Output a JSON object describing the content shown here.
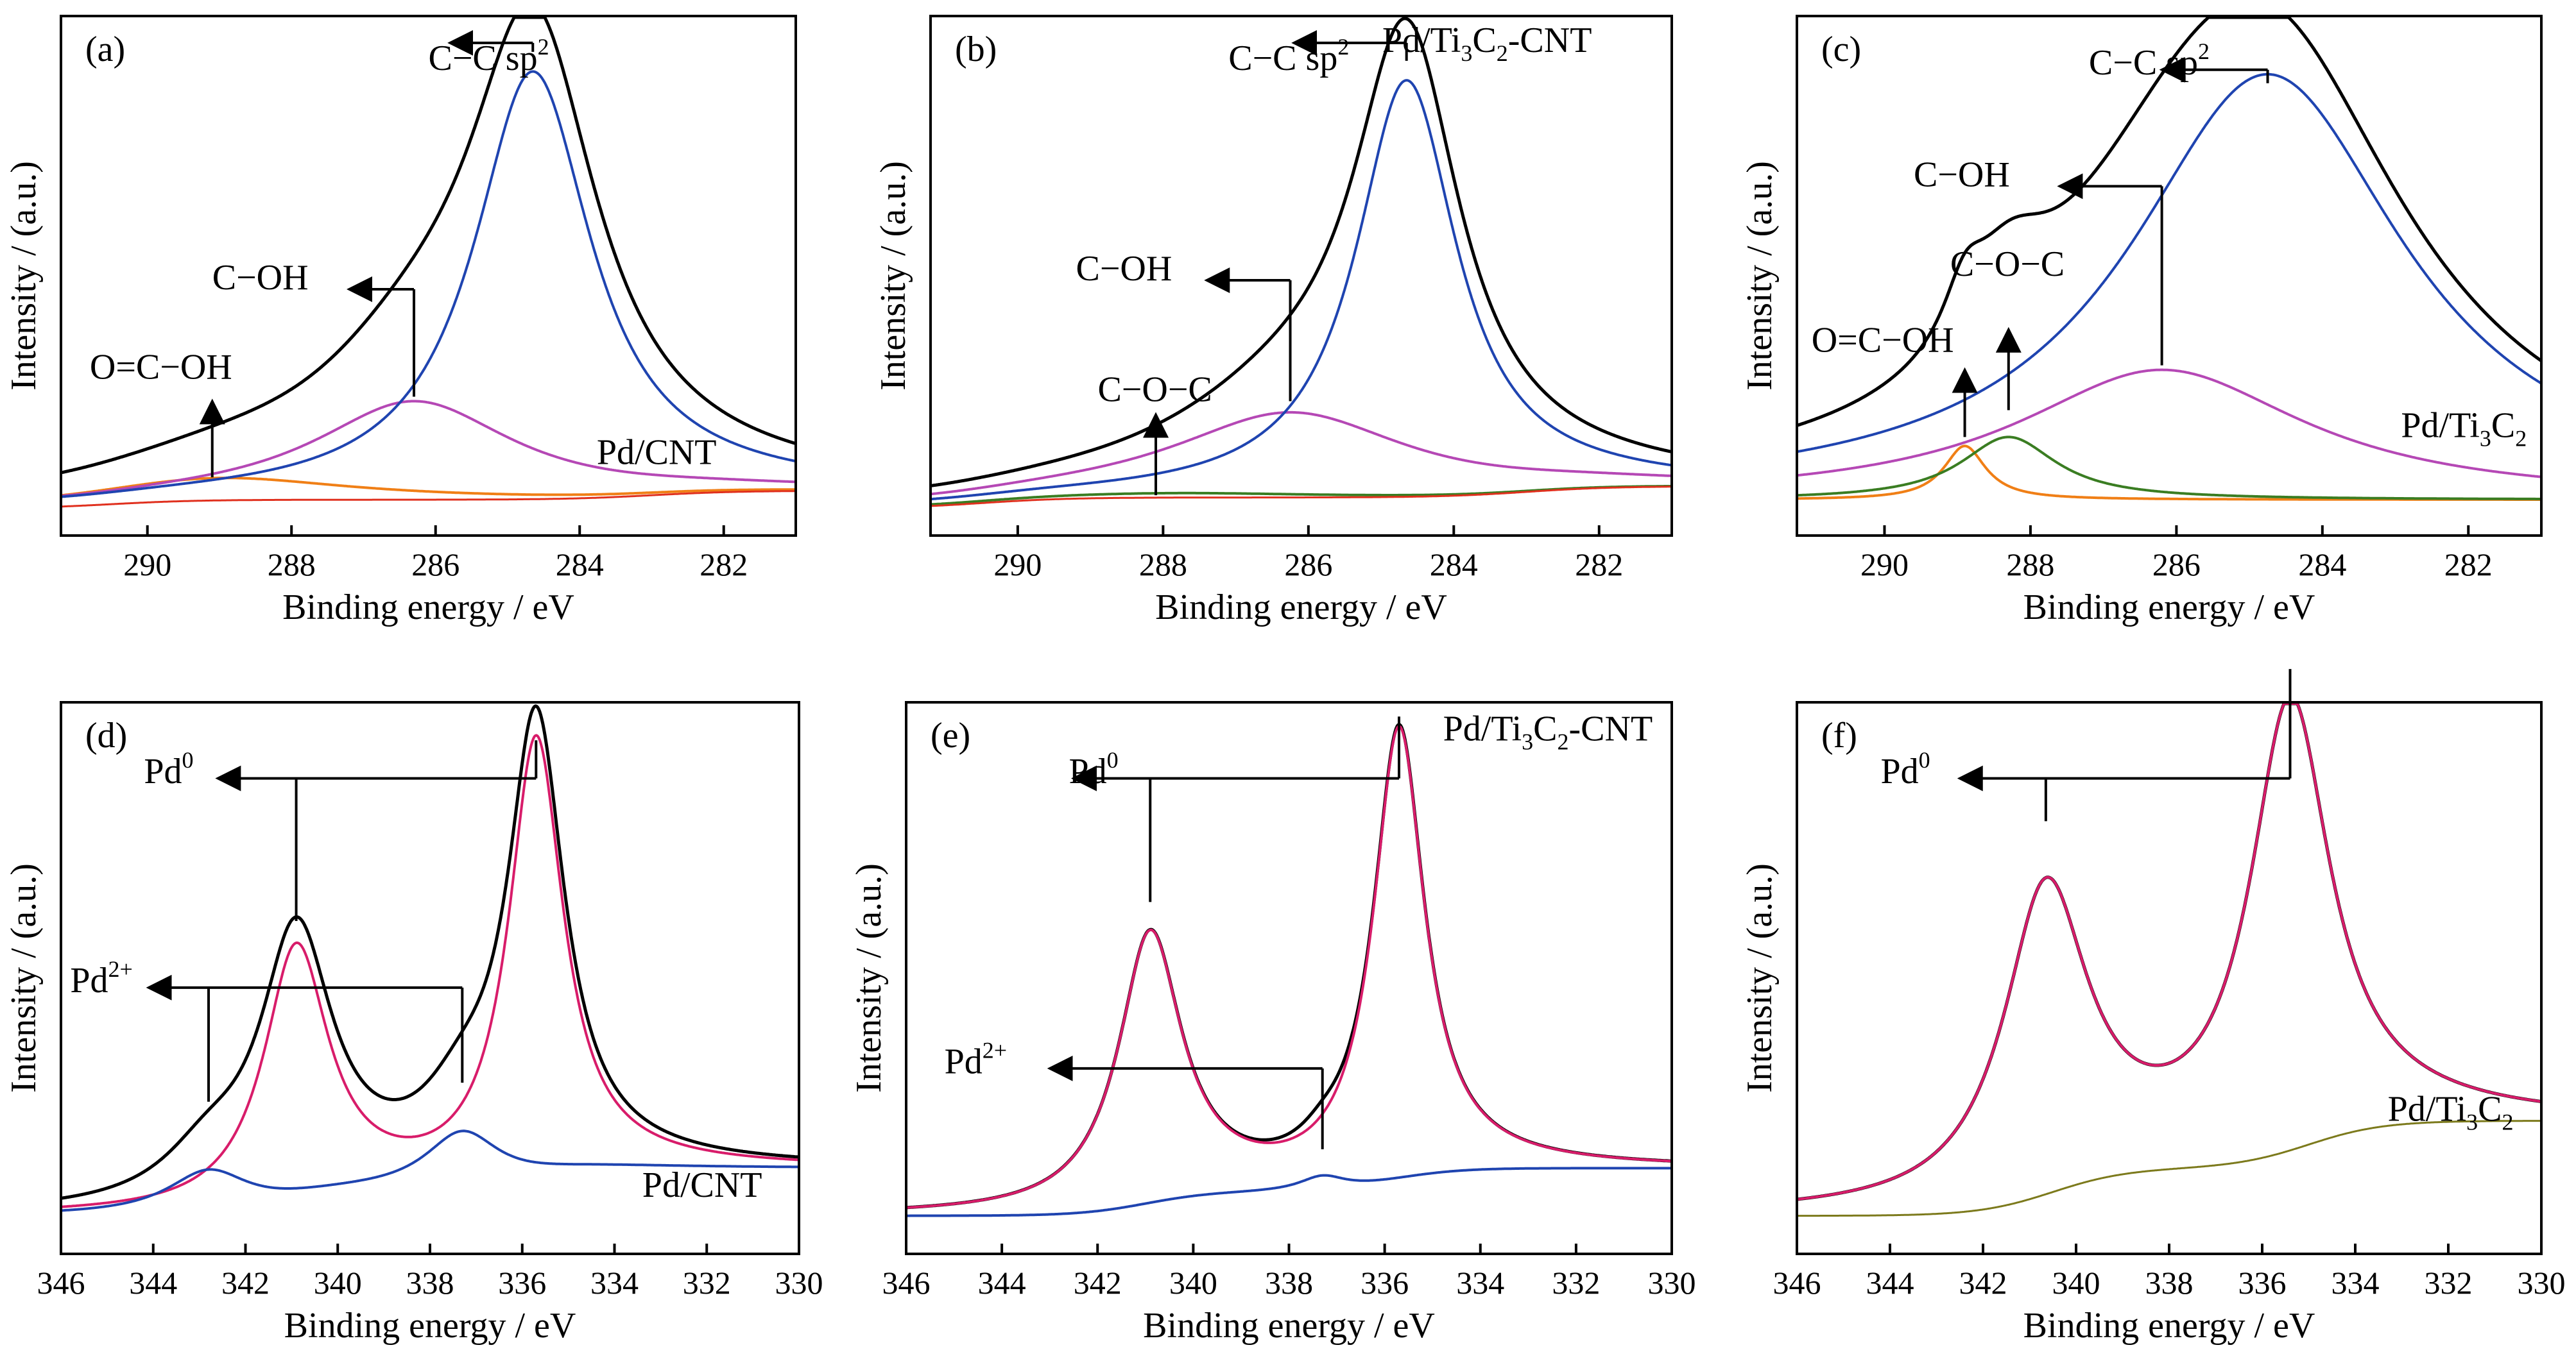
{
  "chart_data": [
    {
      "panel": "(a)",
      "type": "line",
      "sample": "Pd/CNT",
      "xlabel": "Binding energy / eV",
      "ylabel": "Intensity / (a.u.)",
      "xlim": [
        291.2,
        281
      ],
      "ylim": [
        -0.08,
        1.08
      ],
      "reversed_x": true,
      "grid": false,
      "xticks": [
        290,
        288,
        286,
        284,
        282
      ],
      "series": [
        {
          "color": "#000000",
          "width": 5,
          "baseline": {
            "a": -0.02,
            "b": 0.04,
            "t1": 290.5,
            "t2": 283.0
          },
          "peaks": [
            {
              "c": 289.0,
              "a": 0.05,
              "w": 2.2
            },
            {
              "c": 286.3,
              "a": 0.22,
              "w": 1.7
            },
            {
              "c": 284.65,
              "a": 0.985,
              "w": 1.1
            }
          ]
        },
        {
          "color": "#f07f16",
          "width": 4,
          "baseline": {
            "a": -0.02,
            "b": 0.04,
            "t1": 290.5,
            "t2": 283.0
          },
          "peaks": [
            {
              "c": 289.0,
              "a": 0.05,
              "w": 2.2
            }
          ]
        },
        {
          "color": "#b548b5",
          "width": 4,
          "baseline": {
            "a": -0.02,
            "b": 0.04,
            "t1": 290.5,
            "t2": 283.0
          },
          "peaks": [
            {
              "c": 286.3,
              "a": 0.22,
              "w": 1.7
            }
          ]
        },
        {
          "color": "#1f44b0",
          "width": 4,
          "baseline": {
            "a": -0.02,
            "b": 0.04,
            "t1": 290.5,
            "t2": 283.0
          },
          "peaks": [
            {
              "c": 284.65,
              "a": 0.955,
              "w": 1.0
            }
          ]
        },
        {
          "color": "#e0301e",
          "width": 3,
          "baseline": {
            "a": -0.02,
            "b": 0.04,
            "t1": 290.5,
            "t2": 283.0
          },
          "peaks": []
        }
      ],
      "labels": [
        {
          "text": "C−C sp",
          "sup": "2",
          "x": 286.1,
          "y": 0.96
        },
        {
          "text": "C−OH",
          "x": 289.1,
          "y": 0.47
        },
        {
          "text": "O=C−OH",
          "x": 290.8,
          "y": 0.27
        },
        {
          "text": "Pd/CNT",
          "x": 282.1,
          "y": 0.08,
          "anchor": "end"
        }
      ],
      "arrows": [
        {
          "from": [
            284.65,
            1.0
          ],
          "up": 1.02,
          "to": 285.8
        },
        {
          "from": [
            286.3,
            0.23
          ],
          "up": 0.47,
          "to": 287.2
        },
        {
          "vertical": true,
          "x": 289.1,
          "from": 0.05,
          "to": 0.22
        }
      ]
    },
    {
      "panel": "(b)",
      "type": "line",
      "sample": "Pd/Ti3C2-CNT",
      "xlabel": "Binding energy / eV",
      "ylabel": "Intensity / (a.u.)",
      "xlim": [
        291.2,
        281
      ],
      "ylim": [
        -0.08,
        1.08
      ],
      "reversed_x": true,
      "grid": false,
      "xticks": [
        290,
        288,
        286,
        284,
        282
      ],
      "series": [
        {
          "color": "#000000",
          "width": 5,
          "baseline": {
            "a": -0.02,
            "b": 0.05,
            "t1": 290.5,
            "t2": 283.0
          },
          "peaks": [
            {
              "c": 287.8,
              "a": 0.01,
              "w": 2.5
            },
            {
              "c": 286.25,
              "a": 0.17,
              "w": 2.0
            },
            {
              "c": 284.65,
              "a": 0.96,
              "w": 0.9
            }
          ]
        },
        {
          "color": "#3a7d22",
          "width": 4,
          "baseline": {
            "a": -0.02,
            "b": 0.05,
            "t1": 290.5,
            "t2": 283.0
          },
          "peaks": [
            {
              "c": 287.8,
              "a": 0.01,
              "w": 2.5
            }
          ]
        },
        {
          "color": "#b548b5",
          "width": 4,
          "baseline": {
            "a": -0.02,
            "b": 0.05,
            "t1": 290.5,
            "t2": 283.0
          },
          "peaks": [
            {
              "c": 286.25,
              "a": 0.19,
              "w": 2.0
            }
          ]
        },
        {
          "color": "#1f44b0",
          "width": 4,
          "baseline": {
            "a": -0.02,
            "b": 0.05,
            "t1": 290.5,
            "t2": 283.0
          },
          "peaks": [
            {
              "c": 284.65,
              "a": 0.93,
              "w": 0.85
            }
          ]
        },
        {
          "color": "#e0301e",
          "width": 3,
          "baseline": {
            "a": -0.02,
            "b": 0.05,
            "t1": 290.5,
            "t2": 283.0
          },
          "peaks": []
        }
      ],
      "labels": [
        {
          "text": "C−C sp",
          "sup": "2",
          "x": 287.1,
          "y": 0.96
        },
        {
          "text": "Pd/Ti",
          "sub1": "3",
          "mid": "C",
          "sub2": "2",
          "tail": "-CNT",
          "x": 282.1,
          "y": 1.0,
          "anchor": "end"
        },
        {
          "text": "C−OH",
          "x": 289.2,
          "y": 0.49
        },
        {
          "text": "C−O−C",
          "x": 288.9,
          "y": 0.22
        }
      ],
      "arrows": [
        {
          "from": [
            284.65,
            0.98
          ],
          "up": 1.02,
          "to": 286.2
        },
        {
          "from": [
            286.25,
            0.22
          ],
          "up": 0.49,
          "to": 287.4
        },
        {
          "vertical": true,
          "x": 288.1,
          "from": 0.01,
          "to": 0.19
        }
      ]
    },
    {
      "panel": "(c)",
      "type": "line",
      "sample": "Pd/Ti3C2",
      "xlabel": "Binding energy / eV",
      "ylabel": "Intensity / (a.u.)",
      "xlim": [
        291.2,
        281
      ],
      "ylim": [
        -0.08,
        1.08
      ],
      "reversed_x": true,
      "grid": false,
      "xticks": [
        290,
        288,
        286,
        284,
        282
      ],
      "series": [
        {
          "color": "#000000",
          "width": 5,
          "baseline": {
            "a": 0.0,
            "b": 0.0,
            "t1": 290.5,
            "t2": 283.0
          },
          "peaks": [
            {
              "c": 288.9,
              "a": 0.12,
              "w": 0.35
            },
            {
              "c": 288.3,
              "a": 0.17,
              "w": 0.7
            },
            {
              "c": 286.2,
              "a": 0.25,
              "w": 2.2
            },
            {
              "c": 284.75,
              "a": 0.93,
              "w": 2.4
            }
          ]
        },
        {
          "color": "#f07f16",
          "width": 4,
          "baseline": {
            "a": 0.0,
            "b": 0.0,
            "t1": 290.5,
            "t2": 283.0
          },
          "peaks": [
            {
              "c": 288.9,
              "a": 0.12,
              "w": 0.35
            }
          ]
        },
        {
          "color": "#3a7d22",
          "width": 4,
          "baseline": {
            "a": 0.0,
            "b": 0.0,
            "t1": 290.5,
            "t2": 283.0
          },
          "peaks": [
            {
              "c": 288.3,
              "a": 0.14,
              "w": 0.8
            }
          ]
        },
        {
          "color": "#b548b5",
          "width": 4,
          "baseline": {
            "a": 0.0,
            "b": 0.0,
            "t1": 290.5,
            "t2": 283.0
          },
          "peaks": [
            {
              "c": 286.2,
              "a": 0.29,
              "w": 2.4
            }
          ]
        },
        {
          "color": "#1f44b0",
          "width": 4,
          "baseline": {
            "a": 0.0,
            "b": 0.0,
            "t1": 290.5,
            "t2": 283.0
          },
          "peaks": [
            {
              "c": 284.75,
              "a": 0.95,
              "w": 2.3
            }
          ]
        }
      ],
      "labels": [
        {
          "text": "C−C sp",
          "sup": "2",
          "x": 287.2,
          "y": 0.95
        },
        {
          "text": "C−OH",
          "x": 289.6,
          "y": 0.7
        },
        {
          "text": "C−O−C",
          "x": 289.1,
          "y": 0.5
        },
        {
          "text": "O=C−OH",
          "x": 291.0,
          "y": 0.33
        },
        {
          "text": "Pd/Ti",
          "sub1": "3",
          "mid": "C",
          "sub2": "2",
          "x": 281.2,
          "y": 0.14,
          "anchor": "end"
        }
      ],
      "arrows": [
        {
          "from": [
            284.75,
            0.93
          ],
          "up": 0.96,
          "to": 286.2
        },
        {
          "from": [
            286.2,
            0.3
          ],
          "up": 0.7,
          "to": 287.6
        },
        {
          "vertical": true,
          "x": 288.3,
          "from": 0.2,
          "to": 0.38
        },
        {
          "vertical": true,
          "x": 288.9,
          "from": 0.14,
          "to": 0.29
        }
      ]
    },
    {
      "panel": "(d)",
      "type": "line",
      "sample": "Pd/CNT",
      "xlabel": "Binding energy / eV",
      "ylabel": "Intensity / (a.u.)",
      "xlim": [
        346,
        330
      ],
      "ylim": [
        -0.08,
        1.08
      ],
      "reversed_x": true,
      "grid": false,
      "xticks": [
        346,
        344,
        342,
        340,
        338,
        336,
        334,
        332,
        330
      ],
      "series": [
        {
          "color": "#000000",
          "width": 5,
          "baseline": {
            "a": 0.0,
            "b": 0.1,
            "t1": 341.0,
            "t2": 335.8,
            "w": 0.7
          },
          "peaks": [
            {
              "c": 342.8,
              "a": 0.095,
              "w": 1.2
            },
            {
              "c": 340.9,
              "a": 0.545,
              "w": 0.95
            },
            {
              "c": 337.3,
              "a": 0.125,
              "w": 1.1
            },
            {
              "c": 335.7,
              "a": 0.935,
              "w": 0.75
            }
          ]
        },
        {
          "color": "#d81c6a",
          "width": 4,
          "baseline": {
            "a": 0.0,
            "b": 0.1,
            "t1": 341.0,
            "t2": 335.8,
            "w": 0.7
          },
          "peaks": [
            {
              "c": 340.9,
              "a": 0.53,
              "w": 0.85
            },
            {
              "c": 335.7,
              "a": 0.92,
              "w": 0.72
            }
          ]
        },
        {
          "color": "#1f44b0",
          "width": 4,
          "baseline": {
            "a": 0.0,
            "b": 0.1,
            "t1": 341.0,
            "t2": 335.8,
            "w": 0.7
          },
          "peaks": [
            {
              "c": 342.8,
              "a": 0.09,
              "w": 1.1
            },
            {
              "c": 337.3,
              "a": 0.12,
              "w": 1.0
            }
          ]
        }
      ],
      "labels": [
        {
          "text": "Pd",
          "sup": "0",
          "x": 344.2,
          "y": 0.91
        },
        {
          "text": "Pd",
          "sup": "2+",
          "x": 345.8,
          "y": 0.47
        },
        {
          "text": "Pd/CNT",
          "x": 330.8,
          "y": 0.04,
          "anchor": "end"
        }
      ],
      "arrows": [
        {
          "bar": [
            340.9,
            335.7
          ],
          "y": 0.92,
          "drops": [
            [
              340.9,
              0.62
            ],
            [
              335.7,
              1.0
            ]
          ],
          "to": 342.6
        },
        {
          "bar": [
            342.8,
            337.3
          ],
          "y": 0.48,
          "drops": [
            [
              342.8,
              0.24
            ],
            [
              337.3,
              0.28
            ]
          ],
          "to": 344.1
        }
      ]
    },
    {
      "panel": "(e)",
      "type": "line",
      "sample": "Pd/Ti3C2-CNT",
      "xlabel": "Binding energy / eV",
      "ylabel": "Intensity / (a.u.)",
      "xlim": [
        346,
        330
      ],
      "ylim": [
        -0.08,
        1.08
      ],
      "reversed_x": true,
      "grid": false,
      "xticks": [
        346,
        344,
        342,
        340,
        338,
        336,
        334,
        332,
        330
      ],
      "series": [
        {
          "color": "#000000",
          "width": 5,
          "baseline": {
            "a": 0.0,
            "b": 0.1,
            "t1": 341.0,
            "t2": 335.8,
            "w": 0.7
          },
          "peaks": [
            {
              "c": 340.9,
              "a": 0.56,
              "w": 0.8
            },
            {
              "c": 337.3,
              "a": 0.03,
              "w": 0.6
            },
            {
              "c": 335.7,
              "a": 0.94,
              "w": 0.65
            }
          ]
        },
        {
          "color": "#d81c6a",
          "width": 4,
          "baseline": {
            "a": 0.0,
            "b": 0.1,
            "t1": 341.0,
            "t2": 335.8,
            "w": 0.7
          },
          "peaks": [
            {
              "c": 340.9,
              "a": 0.56,
              "w": 0.8
            },
            {
              "c": 335.7,
              "a": 0.94,
              "w": 0.65
            }
          ]
        },
        {
          "color": "#1f44b0",
          "width": 4,
          "baseline": {
            "a": 0.0,
            "b": 0.1,
            "t1": 341.0,
            "t2": 335.8,
            "w": 0.7
          },
          "peaks": [
            {
              "c": 337.3,
              "a": 0.03,
              "w": 0.6
            }
          ]
        }
      ],
      "labels": [
        {
          "text": "Pd/Ti",
          "sub1": "3",
          "mid": "C",
          "sub2": "2",
          "tail": "-CNT",
          "x": 330.4,
          "y": 1.0,
          "anchor": "end"
        },
        {
          "text": "Pd",
          "sup": "0",
          "x": 342.6,
          "y": 0.91
        },
        {
          "text": "Pd",
          "sup": "2+",
          "x": 345.2,
          "y": 0.3
        }
      ],
      "arrows": [
        {
          "bar": [
            340.9,
            335.7
          ],
          "y": 0.92,
          "drops": [
            [
              340.9,
              0.66
            ],
            [
              335.7,
              1.05
            ]
          ],
          "to": 342.5
        },
        {
          "bar": [
            337.3
          ],
          "y": 0.31,
          "drops": [
            [
              337.3,
              0.14
            ]
          ],
          "to": 343.0
        }
      ]
    },
    {
      "panel": "(f)",
      "type": "line",
      "sample": "Pd/Ti3C2",
      "xlabel": "Binding energy / eV",
      "ylabel": "Intensity / (a.u.)",
      "xlim": [
        346,
        330
      ],
      "ylim": [
        -0.08,
        1.08
      ],
      "reversed_x": true,
      "grid": false,
      "xticks": [
        346,
        344,
        342,
        340,
        338,
        336,
        334,
        332,
        330
      ],
      "series": [
        {
          "color": "#000000",
          "width": 5,
          "baseline": {
            "a": 0.0,
            "b": 0.2,
            "t1": 340.5,
            "t2": 335.0,
            "w": 0.8
          },
          "peaks": [
            {
              "c": 340.65,
              "a": 0.63,
              "w": 1.1
            },
            {
              "c": 335.4,
              "a": 0.93,
              "w": 1.05
            }
          ]
        },
        {
          "color": "#d81c6a",
          "width": 4,
          "baseline": {
            "a": 0.0,
            "b": 0.2,
            "t1": 340.5,
            "t2": 335.0,
            "w": 0.8
          },
          "peaks": [
            {
              "c": 340.65,
              "a": 0.63,
              "w": 1.1
            },
            {
              "c": 335.4,
              "a": 0.93,
              "w": 1.05
            }
          ]
        },
        {
          "color": "#7c7a1c",
          "width": 3,
          "baseline": {
            "a": 0.0,
            "b": 0.2,
            "t1": 340.5,
            "t2": 335.0,
            "w": 0.8
          },
          "peaks": []
        }
      ],
      "labels": [
        {
          "text": "Pd",
          "sup": "0",
          "x": 344.2,
          "y": 0.91
        },
        {
          "text": "Pd/Ti",
          "sub1": "3",
          "mid": "C",
          "sub2": "2",
          "x": 330.6,
          "y": 0.2,
          "anchor": "end"
        }
      ],
      "arrows": [
        {
          "bar": [
            340.65,
            335.4
          ],
          "y": 0.92,
          "drops": [
            [
              340.65,
              0.83
            ],
            [
              335.4,
              1.15
            ]
          ],
          "to": 342.5
        }
      ]
    }
  ]
}
